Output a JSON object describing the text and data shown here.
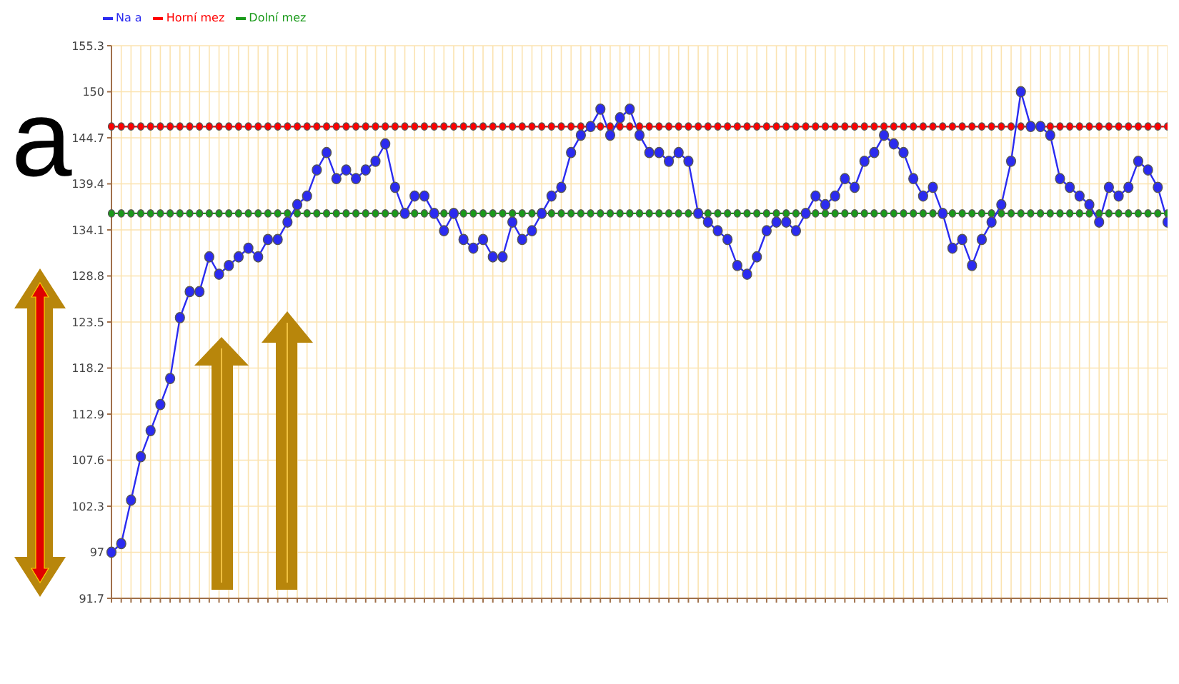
{
  "chart_data": {
    "type": "line",
    "categories": [
      null,
      null,
      null,
      null,
      null,
      null,
      null,
      null,
      null,
      null,
      null,
      null,
      null,
      null,
      null,
      null,
      null,
      null,
      null,
      null,
      null,
      null,
      null,
      null,
      null,
      null,
      null,
      null,
      null,
      null,
      null,
      null,
      null,
      null,
      null,
      null,
      null,
      null,
      null,
      null,
      null,
      null,
      null,
      null,
      null,
      null,
      null,
      null,
      null,
      null,
      null,
      null,
      null,
      null,
      null,
      null,
      null,
      null,
      null,
      null,
      null,
      null,
      null,
      null,
      null,
      null,
      null,
      null,
      null,
      null,
      null,
      null,
      null,
      null,
      null,
      null,
      null,
      null,
      null,
      null,
      null,
      null,
      null,
      null,
      null,
      null,
      null,
      null,
      null,
      null,
      null,
      null,
      null,
      null,
      null,
      null,
      null,
      null,
      null,
      null,
      null,
      null,
      null,
      null,
      null,
      null,
      null,
      null,
      null
    ],
    "series": [
      {
        "name": "Na a",
        "color": "#2b2bf0",
        "values": [
          97,
          98,
          103,
          108,
          111,
          114,
          117,
          124,
          127,
          127,
          131,
          129,
          130,
          131,
          132,
          131,
          133,
          133,
          135,
          137,
          138,
          141,
          143,
          140,
          141,
          140,
          141,
          142,
          144,
          139,
          136,
          138,
          138,
          136,
          134,
          136,
          133,
          132,
          133,
          131,
          131,
          135,
          133,
          134,
          136,
          138,
          139,
          143,
          145,
          146,
          148,
          145,
          147,
          148,
          145,
          143,
          143,
          142,
          143,
          142,
          136,
          135,
          134,
          133,
          130,
          129,
          131,
          134,
          135,
          135,
          134,
          136,
          138,
          137,
          138,
          140,
          139,
          142,
          143,
          145,
          144,
          143,
          140,
          138,
          139,
          136,
          132,
          133,
          130,
          133,
          135,
          137,
          142,
          150,
          146,
          146,
          145,
          140,
          139,
          138,
          137,
          135,
          139,
          138,
          139,
          142,
          141,
          139,
          135
        ]
      },
      {
        "name": "Horní mez",
        "color": "#ff0000",
        "values": [
          146,
          146,
          146,
          146,
          146,
          146,
          146,
          146,
          146,
          146,
          146,
          146,
          146,
          146,
          146,
          146,
          146,
          146,
          146,
          146,
          146,
          146,
          146,
          146,
          146,
          146,
          146,
          146,
          146,
          146,
          146,
          146,
          146,
          146,
          146,
          146,
          146,
          146,
          146,
          146,
          146,
          146,
          146,
          146,
          146,
          146,
          146,
          146,
          146,
          146,
          146,
          146,
          146,
          146,
          146,
          146,
          146,
          146,
          146,
          146,
          146,
          146,
          146,
          146,
          146,
          146,
          146,
          146,
          146,
          146,
          146,
          146,
          146,
          146,
          146,
          146,
          146,
          146,
          146,
          146,
          146,
          146,
          146,
          146,
          146,
          146,
          146,
          146,
          146,
          146,
          146,
          146,
          146,
          146,
          146,
          146,
          146,
          146,
          146,
          146,
          146,
          146,
          146,
          146,
          146,
          146,
          146,
          146,
          146
        ]
      },
      {
        "name": "Dolní mez",
        "color": "#1a9a1a",
        "values": [
          136,
          136,
          136,
          136,
          136,
          136,
          136,
          136,
          136,
          136,
          136,
          136,
          136,
          136,
          136,
          136,
          136,
          136,
          136,
          136,
          136,
          136,
          136,
          136,
          136,
          136,
          136,
          136,
          136,
          136,
          136,
          136,
          136,
          136,
          136,
          136,
          136,
          136,
          136,
          136,
          136,
          136,
          136,
          136,
          136,
          136,
          136,
          136,
          136,
          136,
          136,
          136,
          136,
          136,
          136,
          136,
          136,
          136,
          136,
          136,
          136,
          136,
          136,
          136,
          136,
          136,
          136,
          136,
          136,
          136,
          136,
          136,
          136,
          136,
          136,
          136,
          136,
          136,
          136,
          136,
          136,
          136,
          136,
          136,
          136,
          136,
          136,
          136,
          136,
          136,
          136,
          136,
          136,
          136,
          136,
          136,
          136,
          136,
          136,
          136,
          136,
          136,
          136,
          136,
          136,
          136,
          136,
          136,
          136
        ]
      }
    ],
    "ylim": [
      91.7,
      155.3
    ],
    "yticks": [
      91.7,
      97,
      102.3,
      107.6,
      112.9,
      118.2,
      123.5,
      128.8,
      134.1,
      139.4,
      144.7,
      150,
      155.3
    ],
    "grid": true,
    "legend": "top left",
    "marker": "circle",
    "line_style": "solid",
    "annotations": [
      "a"
    ]
  }
}
